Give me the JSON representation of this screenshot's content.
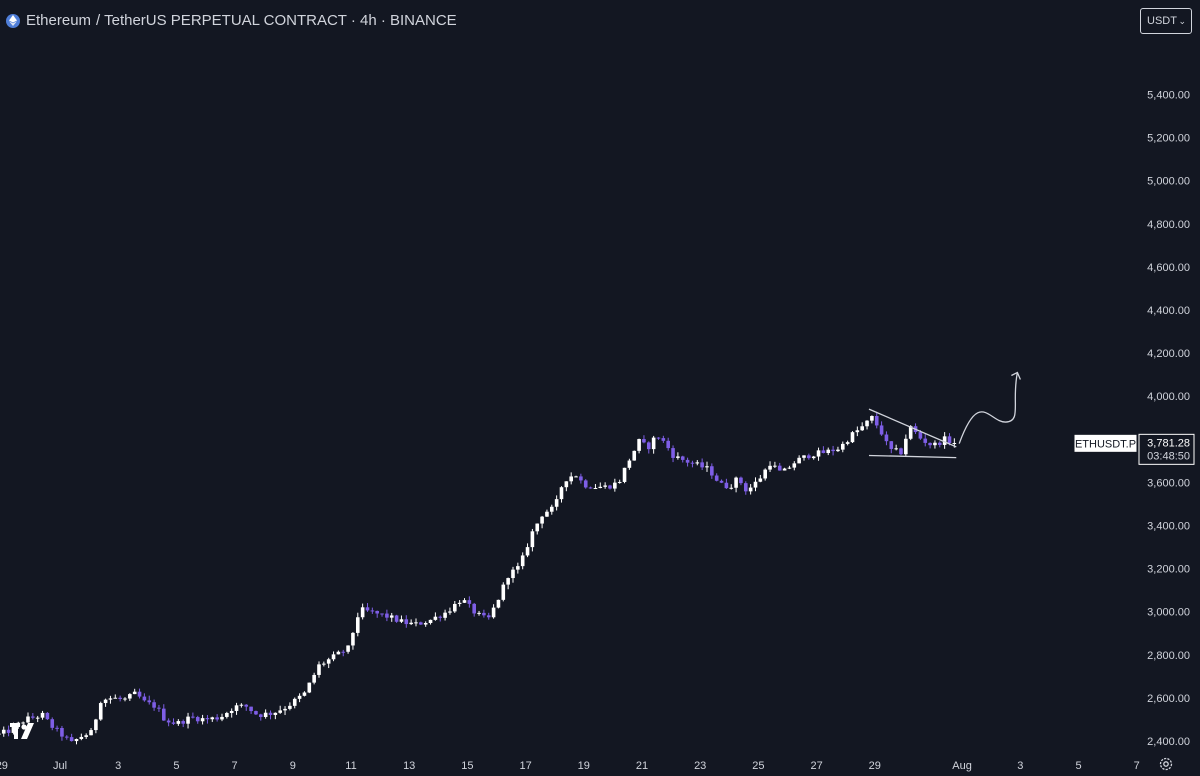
{
  "header": {
    "symbol_name": "Ethereum",
    "symbol_rest": "/ TetherUS PERPETUAL CONTRACT · 4h · BINANCE",
    "currency": "USDT"
  },
  "colors": {
    "background": "#131722",
    "up": "#ffffff",
    "down": "#7e5ee6",
    "text": "#d1d4dc",
    "drawing": "#d1d4dc"
  },
  "chart_data": {
    "type": "candlestick",
    "title": "Ethereum / TetherUS PERPETUAL CONTRACT · 4h · BINANCE",
    "ylim": [
      2330,
      5500
    ],
    "y_ticks": [
      "5,400.00",
      "5,200.00",
      "5,000.00",
      "4,800.00",
      "4,600.00",
      "4,400.00",
      "4,200.00",
      "4,000.00",
      "3,800.00",
      "3,600.00",
      "3,400.00",
      "3,200.00",
      "3,000.00",
      "2,800.00",
      "2,600.00",
      "2,400.00"
    ],
    "y_tick_values": [
      5400,
      5200,
      5000,
      4800,
      4600,
      4400,
      4200,
      4000,
      3800,
      3600,
      3400,
      3200,
      3000,
      2800,
      2600,
      2400
    ],
    "x_ticks": [
      "29",
      "Jul",
      "3",
      "5",
      "7",
      "9",
      "11",
      "13",
      "15",
      "17",
      "19",
      "21",
      "23",
      "25",
      "27",
      "29",
      "Aug",
      "3",
      "5",
      "7"
    ],
    "x_tick_days": [
      -2,
      0,
      2,
      4,
      6,
      8,
      10,
      12,
      14,
      16,
      18,
      20,
      22,
      24,
      26,
      28,
      31,
      33,
      35,
      37
    ],
    "last_price": {
      "symbol": "ETHUSDT.P",
      "price": "3,781.28",
      "countdown": "03:48:50",
      "value": 3781.28
    },
    "anchors": [
      [
        -2.1,
        2430
      ],
      [
        -1.7,
        2450
      ],
      [
        -1.2,
        2500
      ],
      [
        -0.6,
        2520
      ],
      [
        -0.3,
        2470
      ],
      [
        0.4,
        2390
      ],
      [
        0.7,
        2420
      ],
      [
        1.1,
        2440
      ],
      [
        1.4,
        2590
      ],
      [
        1.8,
        2600
      ],
      [
        2.2,
        2590
      ],
      [
        2.6,
        2620
      ],
      [
        2.9,
        2580
      ],
      [
        3.3,
        2560
      ],
      [
        3.6,
        2500
      ],
      [
        4.0,
        2480
      ],
      [
        4.5,
        2510
      ],
      [
        5.0,
        2500
      ],
      [
        5.5,
        2510
      ],
      [
        6.0,
        2560
      ],
      [
        6.4,
        2560
      ],
      [
        6.8,
        2520
      ],
      [
        7.3,
        2530
      ],
      [
        7.8,
        2560
      ],
      [
        8.4,
        2620
      ],
      [
        8.9,
        2750
      ],
      [
        9.4,
        2790
      ],
      [
        9.9,
        2830
      ],
      [
        10.3,
        3010
      ],
      [
        10.6,
        3000
      ],
      [
        11.2,
        2980
      ],
      [
        11.8,
        2950
      ],
      [
        12.2,
        2940
      ],
      [
        12.7,
        2960
      ],
      [
        13.3,
        3000
      ],
      [
        13.8,
        3060
      ],
      [
        14.3,
        2990
      ],
      [
        14.7,
        2960
      ],
      [
        15.0,
        3040
      ],
      [
        15.4,
        3170
      ],
      [
        15.8,
        3210
      ],
      [
        16.2,
        3360
      ],
      [
        16.6,
        3460
      ],
      [
        17.0,
        3480
      ],
      [
        17.3,
        3610
      ],
      [
        17.7,
        3640
      ],
      [
        18.0,
        3590
      ],
      [
        18.4,
        3580
      ],
      [
        18.8,
        3580
      ],
      [
        19.2,
        3600
      ],
      [
        19.5,
        3690
      ],
      [
        19.9,
        3790
      ],
      [
        20.2,
        3760
      ],
      [
        20.5,
        3820
      ],
      [
        20.8,
        3780
      ],
      [
        21.1,
        3720
      ],
      [
        21.5,
        3700
      ],
      [
        21.9,
        3680
      ],
      [
        22.3,
        3660
      ],
      [
        22.7,
        3590
      ],
      [
        23.0,
        3580
      ],
      [
        23.3,
        3620
      ],
      [
        23.6,
        3560
      ],
      [
        24.0,
        3610
      ],
      [
        24.4,
        3690
      ],
      [
        24.8,
        3640
      ],
      [
        25.3,
        3700
      ],
      [
        25.8,
        3730
      ],
      [
        26.3,
        3740
      ],
      [
        26.8,
        3760
      ],
      [
        27.2,
        3820
      ],
      [
        27.6,
        3860
      ],
      [
        27.9,
        3900
      ],
      [
        28.2,
        3840
      ],
      [
        28.5,
        3750
      ],
      [
        28.9,
        3740
      ],
      [
        29.2,
        3860
      ],
      [
        29.6,
        3800
      ],
      [
        30.0,
        3770
      ],
      [
        30.4,
        3800
      ],
      [
        30.8,
        3780
      ]
    ],
    "annotations": [
      {
        "type": "trendline",
        "from": [
          27.8,
          3940
        ],
        "to": [
          30.8,
          3765
        ]
      },
      {
        "type": "trendline",
        "from": [
          27.8,
          3725
        ],
        "to": [
          30.8,
          3715
        ]
      },
      {
        "type": "arrow",
        "points": [
          [
            30.9,
            3780
          ],
          [
            31.6,
            3900
          ],
          [
            32.5,
            3880
          ],
          [
            32.9,
            4110
          ]
        ]
      }
    ]
  }
}
